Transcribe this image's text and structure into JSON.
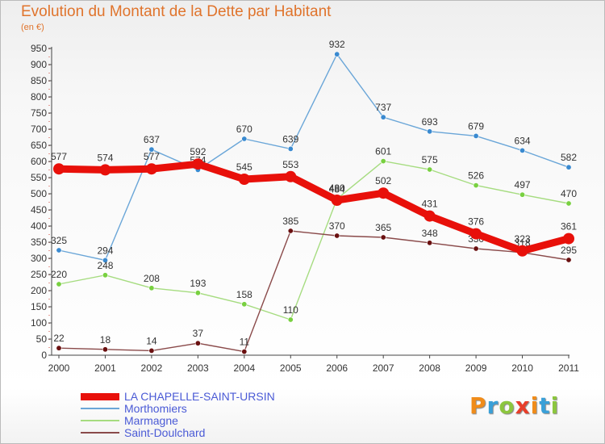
{
  "title": "Evolution du Montant de la Dette par Habitant",
  "subtitle": "(en €)",
  "logo": {
    "text": "Proxiti",
    "letter_colors": [
      "#f08c1a",
      "#3aa0d8",
      "#8cc63e",
      "#e83e2a",
      "#f08c1a",
      "#3aa0d8",
      "#8cc63e"
    ]
  },
  "chart_data": {
    "type": "line",
    "x": [
      "2000",
      "2001",
      "2002",
      "2003",
      "2004",
      "2005",
      "2006",
      "2007",
      "2008",
      "2009",
      "2010",
      "2011"
    ],
    "ylim": [
      0,
      950
    ],
    "yticks": [
      0,
      50,
      100,
      150,
      200,
      250,
      300,
      350,
      400,
      450,
      500,
      550,
      600,
      650,
      700,
      750,
      800,
      850,
      900,
      950
    ],
    "grid": false,
    "legend_position": "bottom-left",
    "series": [
      {
        "name": "LA CHAPELLE-SAINT-URSIN",
        "color": "#e8100a",
        "marker": "#e8100a",
        "values": [
          577,
          574,
          577,
          592,
          545,
          553,
          480,
          502,
          431,
          376,
          323,
          361
        ]
      },
      {
        "name": "Morthomiers",
        "color": "#6aa6d8",
        "marker": "#3a8ad0",
        "values": [
          325,
          294,
          637,
          574,
          670,
          639,
          932,
          737,
          693,
          679,
          634,
          582
        ]
      },
      {
        "name": "Marmagne",
        "color": "#a6dc80",
        "marker": "#78d040",
        "values": [
          220,
          248,
          208,
          193,
          158,
          110,
          484,
          601,
          575,
          526,
          497,
          470
        ]
      },
      {
        "name": "Saint-Doulchard",
        "color": "#8a4a4a",
        "marker": "#6a1010",
        "values": [
          22,
          18,
          14,
          37,
          11,
          385,
          370,
          365,
          348,
          330,
          318,
          295
        ]
      }
    ]
  }
}
